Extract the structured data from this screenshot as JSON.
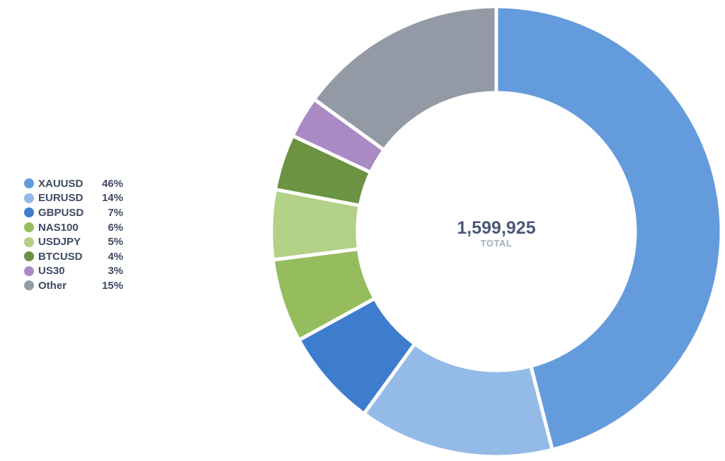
{
  "chart_data": {
    "type": "pie",
    "donut": true,
    "center_value": "1,599,925",
    "center_label": "TOTAL",
    "legend_position": "left",
    "slices": [
      {
        "label": "XAUUSD",
        "pct_text": "46%",
        "value": 46,
        "color": "#649bdc"
      },
      {
        "label": "EURUSD",
        "pct_text": "14%",
        "value": 14,
        "color": "#94bbe7"
      },
      {
        "label": "GBPUSD",
        "pct_text": "7%",
        "value": 7,
        "color": "#3e7cce"
      },
      {
        "label": "NAS100",
        "pct_text": "6%",
        "value": 6,
        "color": "#95bd5e"
      },
      {
        "label": "USDJPY",
        "pct_text": "5%",
        "value": 5,
        "color": "#b1d187"
      },
      {
        "label": "BTCUSD",
        "pct_text": "4%",
        "value": 4,
        "color": "#6b9342"
      },
      {
        "label": "US30",
        "pct_text": "3%",
        "value": 3,
        "color": "#a98ac5"
      },
      {
        "label": "Other",
        "pct_text": "15%",
        "value": 15,
        "color": "#939aa6"
      }
    ]
  }
}
